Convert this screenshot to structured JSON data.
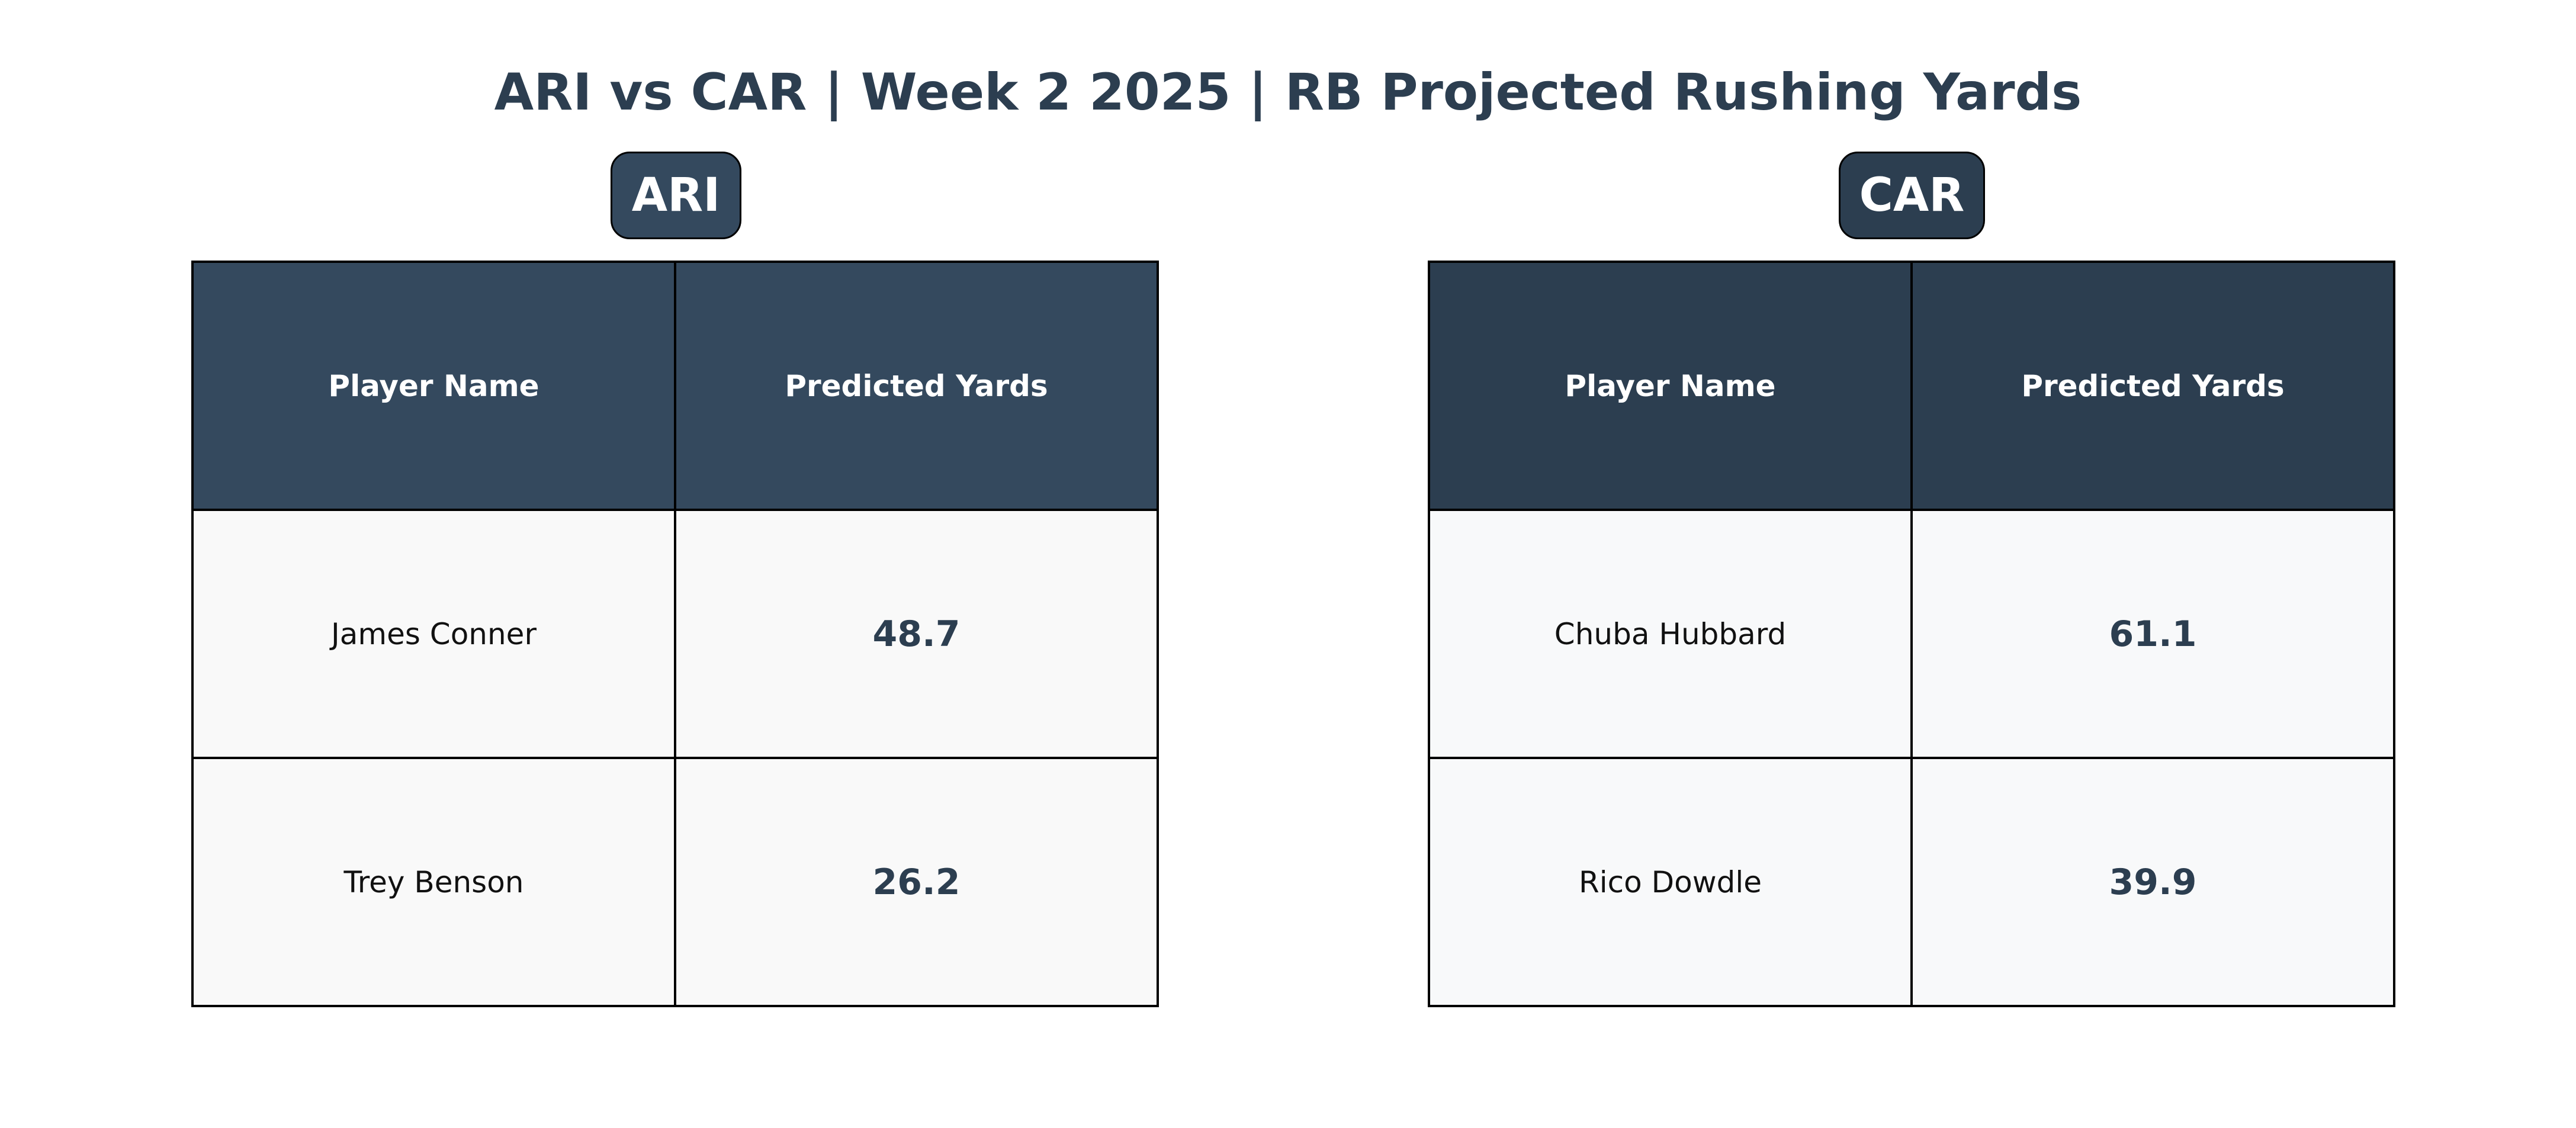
{
  "title": "ARI vs CAR | Week 2 2025 | RB Projected Rushing Yards",
  "chart_data": {
    "type": "table",
    "title": "ARI vs CAR | Week 2 2025 | RB Projected Rushing Yards",
    "tables": [
      {
        "team": "ARI",
        "header_color": "#34495e",
        "row_color": "#f9f9f9",
        "columns": [
          "Player Name",
          "Predicted Yards"
        ],
        "rows": [
          {
            "player": "James Conner",
            "yards": "48.7"
          },
          {
            "player": "Trey Benson",
            "yards": "26.2"
          }
        ]
      },
      {
        "team": "CAR",
        "header_color": "#2c3e50",
        "row_color": "#f8f9fa",
        "columns": [
          "Player Name",
          "Predicted Yards"
        ],
        "rows": [
          {
            "player": "Chuba Hubbard",
            "yards": "61.1"
          },
          {
            "player": "Rico Dowdle",
            "yards": "39.9"
          }
        ]
      }
    ]
  }
}
